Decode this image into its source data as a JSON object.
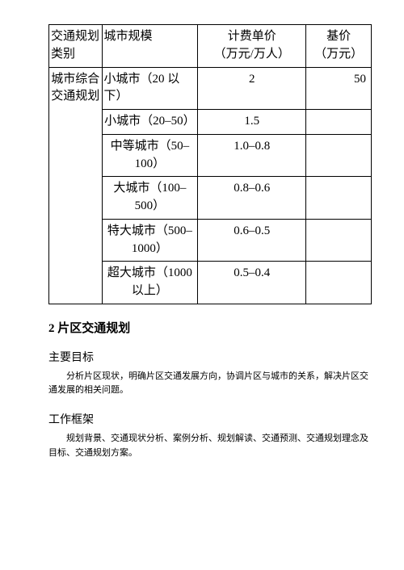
{
  "table": {
    "headers": {
      "col1": "交通规划类别",
      "col2": "城市规模",
      "col3_line1": "计费单价",
      "col3_line2": "（万元/万人）",
      "col4_line1": "基价",
      "col4_line2": "（万元）"
    },
    "category": "城市综合交通规划",
    "rows": [
      {
        "scale": "小城市（20 以下）",
        "price": "2",
        "base": "50"
      },
      {
        "scale": "小城市（20–50）",
        "price": "1.5",
        "base": ""
      },
      {
        "scale": "中等城市（50–100）",
        "price": "1.0–0.8",
        "base": ""
      },
      {
        "scale": "大城市（100–500）",
        "price": "0.8–0.6",
        "base": ""
      },
      {
        "scale": "特大城市（500–1000）",
        "price": "0.6–0.5",
        "base": ""
      },
      {
        "scale": "超大城市（1000 以上）",
        "price": "0.5–0.4",
        "base": ""
      }
    ]
  },
  "section": {
    "number": "2",
    "title": "片区交通规划"
  },
  "subsections": {
    "goal_title": "主要目标",
    "goal_text": "分析片区现状，明确片区交通发展方向，协调片区与城市的关系，解决片区交通发展的相关问题。",
    "frame_title": "工作框架",
    "frame_text": "规划背景、交通现状分析、案例分析、规划解读、交通预测、交通规划理念及目标、交通规划方案。"
  }
}
